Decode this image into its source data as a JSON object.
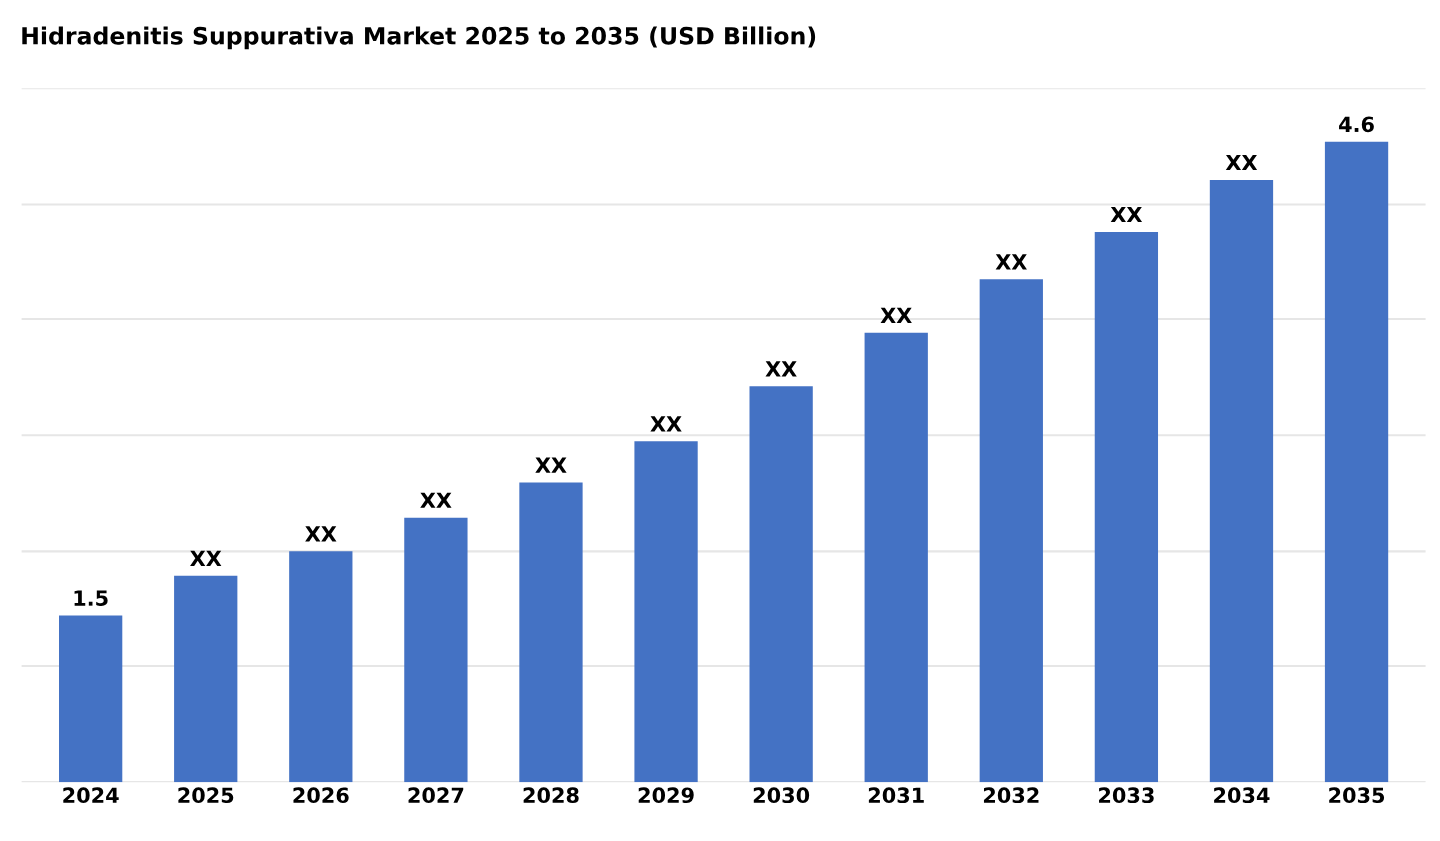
{
  "chart_data": {
    "type": "bar",
    "title": "Hidradenitis Suppurativa Market 2025 to 2035 (USD Billion)",
    "categories": [
      "2024",
      "2025",
      "2026",
      "2027",
      "2028",
      "2029",
      "2030",
      "2031",
      "2032",
      "2033",
      "2034",
      "2035"
    ],
    "values": [
      1.5,
      1.76,
      1.92,
      2.14,
      2.37,
      2.64,
      3.0,
      3.35,
      3.7,
      4.01,
      4.35,
      4.6
    ],
    "value_labels": [
      "1.5",
      "XX",
      "XX",
      "XX",
      "XX",
      "XX",
      "XX",
      "XX",
      "XX",
      "XX",
      "XX",
      "4.6"
    ],
    "color": "#4472c4",
    "ylim": [
      0.41,
      4.95
    ],
    "yticks": [
      {
        "value": 0.41,
        "label": null
      },
      {
        "value": 1.17,
        "label": null
      },
      {
        "value": 1.92,
        "label": null
      },
      {
        "value": 2.68,
        "label": null
      },
      {
        "value": 3.44,
        "label": null
      },
      {
        "value": 4.19,
        "label": null
      },
      {
        "value": 4.95,
        "label": null
      }
    ],
    "tick_labels": "x",
    "grid": "y"
  }
}
